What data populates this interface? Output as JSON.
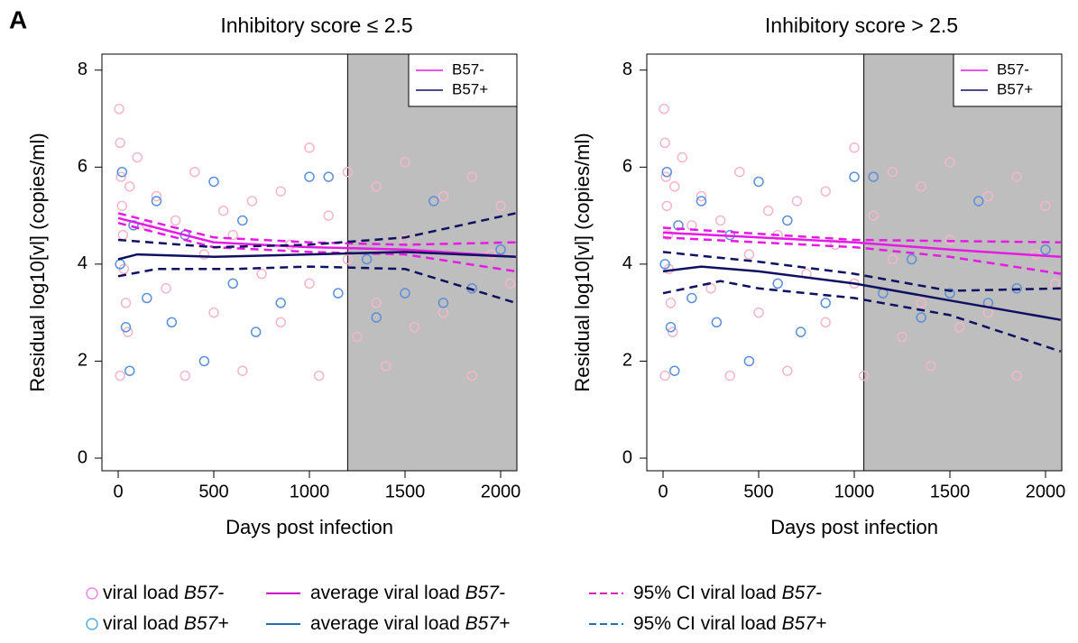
{
  "panel_label": "A",
  "chart_data": [
    {
      "type": "scatter",
      "title": "Inhibitory score ≤ 2.5",
      "x_label": "Days post infection",
      "y_label": "Residual log10[vl] (copies/ml)",
      "xlim": [
        -85,
        2085
      ],
      "ylim": [
        -0.26,
        8.33
      ],
      "xticks": [
        0,
        500,
        1000,
        1500,
        2000
      ],
      "yticks": [
        0,
        2,
        4,
        6,
        8
      ],
      "shade_from": 1200,
      "shade_color": "#bebebe",
      "legend_position": "top-right",
      "legend": [
        {
          "name": "B57-",
          "color": "#e619e6"
        },
        {
          "name": "B57+",
          "color": "#101060"
        }
      ],
      "series": [
        {
          "style": "points",
          "color": "#f4b6c8",
          "x": [
            5,
            10,
            15,
            20,
            25,
            30,
            40,
            50,
            10,
            60,
            100,
            150,
            200,
            250,
            300,
            350,
            400,
            450,
            500,
            550,
            600,
            650,
            700,
            750,
            850,
            850,
            900,
            1000,
            1000,
            1050,
            1100,
            1200,
            1200,
            1250,
            1350,
            1350,
            1400,
            1500,
            1500,
            1550,
            1700,
            1700,
            1850,
            1850,
            1950,
            2000,
            2050
          ],
          "values": [
            7.2,
            6.5,
            5.8,
            5.2,
            4.6,
            3.9,
            3.2,
            2.6,
            1.7,
            5.6,
            6.2,
            4.8,
            5.4,
            3.5,
            4.9,
            1.7,
            5.9,
            4.2,
            3.0,
            5.1,
            4.6,
            1.8,
            5.3,
            3.8,
            5.5,
            2.8,
            4.4,
            6.4,
            3.6,
            1.7,
            5.0,
            5.9,
            4.1,
            2.5,
            5.6,
            3.2,
            1.9,
            6.1,
            4.5,
            2.7,
            5.4,
            3.0,
            5.8,
            1.7,
            4.2,
            5.2,
            3.6
          ]
        },
        {
          "style": "points",
          "color": "#5b8fd9",
          "x": [
            10,
            20,
            40,
            60,
            80,
            150,
            200,
            280,
            350,
            450,
            500,
            600,
            650,
            720,
            850,
            1000,
            1100,
            1150,
            1300,
            1350,
            1500,
            1650,
            1700,
            1850,
            2000
          ],
          "values": [
            4.0,
            5.9,
            2.7,
            1.8,
            4.8,
            3.3,
            5.3,
            2.8,
            4.6,
            2.0,
            5.7,
            3.6,
            4.9,
            2.6,
            3.2,
            5.8,
            5.8,
            3.4,
            4.1,
            2.9,
            3.4,
            5.3,
            3.2,
            3.5,
            4.3
          ]
        },
        {
          "style": "line",
          "color": "#e619e6",
          "x": [
            0,
            500,
            1000,
            1500,
            2080
          ],
          "values": [
            4.95,
            4.45,
            4.35,
            4.3,
            4.15
          ]
        },
        {
          "style": "dashed",
          "color": "#e619e6",
          "x": [
            0,
            500,
            1000,
            1500,
            2080
          ],
          "values": [
            5.05,
            4.55,
            4.45,
            4.4,
            4.45
          ]
        },
        {
          "style": "dashed",
          "color": "#e619e6",
          "x": [
            0,
            500,
            1000,
            1500,
            2080
          ],
          "values": [
            4.85,
            4.35,
            4.25,
            4.2,
            3.85
          ]
        },
        {
          "style": "line",
          "color": "#101060",
          "x": [
            0,
            100,
            500,
            1000,
            1500,
            2080
          ],
          "values": [
            4.1,
            4.2,
            4.15,
            4.2,
            4.25,
            4.15
          ]
        },
        {
          "style": "dashed",
          "color": "#101060",
          "x": [
            0,
            500,
            1000,
            1500,
            2080
          ],
          "values": [
            4.5,
            4.35,
            4.4,
            4.55,
            5.05
          ]
        },
        {
          "style": "dashed",
          "color": "#101060",
          "x": [
            0,
            200,
            600,
            1000,
            1500,
            2080
          ],
          "values": [
            3.75,
            3.9,
            3.9,
            3.95,
            3.9,
            3.2
          ]
        }
      ]
    },
    {
      "type": "scatter",
      "title": "Inhibitory score > 2.5",
      "x_label": "Days post infection",
      "y_label": "Residual log10[vl] (copies/ml)",
      "xlim": [
        -85,
        2085
      ],
      "ylim": [
        -0.26,
        8.33
      ],
      "xticks": [
        0,
        500,
        1000,
        1500,
        2000
      ],
      "yticks": [
        0,
        2,
        4,
        6,
        8
      ],
      "shade_from": 1050,
      "shade_color": "#bebebe",
      "legend_position": "top-right",
      "legend": [
        {
          "name": "B57-",
          "color": "#e619e6"
        },
        {
          "name": "B57+",
          "color": "#101060"
        }
      ],
      "series": [
        {
          "style": "points",
          "color": "#f4b6c8",
          "x": [
            5,
            10,
            15,
            20,
            25,
            30,
            40,
            50,
            10,
            60,
            100,
            150,
            200,
            250,
            300,
            350,
            400,
            450,
            500,
            550,
            600,
            650,
            700,
            750,
            850,
            850,
            900,
            1000,
            1000,
            1050,
            1100,
            1200,
            1200,
            1250,
            1350,
            1350,
            1400,
            1500,
            1500,
            1550,
            1700,
            1700,
            1850,
            1850,
            1950,
            2000,
            2050
          ],
          "values": [
            7.2,
            6.5,
            5.8,
            5.2,
            4.6,
            3.9,
            3.2,
            2.6,
            1.7,
            5.6,
            6.2,
            4.8,
            5.4,
            3.5,
            4.9,
            1.7,
            5.9,
            4.2,
            3.0,
            5.1,
            4.6,
            1.8,
            5.3,
            3.8,
            5.5,
            2.8,
            4.4,
            6.4,
            3.6,
            1.7,
            5.0,
            5.9,
            4.1,
            2.5,
            5.6,
            3.2,
            1.9,
            6.1,
            4.5,
            2.7,
            5.4,
            3.0,
            5.8,
            1.7,
            4.2,
            5.2,
            3.6
          ]
        },
        {
          "style": "points",
          "color": "#5b8fd9",
          "x": [
            10,
            20,
            40,
            60,
            80,
            150,
            200,
            280,
            350,
            450,
            500,
            600,
            650,
            720,
            850,
            1000,
            1100,
            1150,
            1300,
            1350,
            1500,
            1650,
            1700,
            1850,
            2000
          ],
          "values": [
            4.0,
            5.9,
            2.7,
            1.8,
            4.8,
            3.3,
            5.3,
            2.8,
            4.6,
            2.0,
            5.7,
            3.6,
            4.9,
            2.6,
            3.2,
            5.8,
            5.8,
            3.4,
            4.1,
            2.9,
            3.4,
            5.3,
            3.2,
            3.5,
            4.3
          ]
        },
        {
          "style": "line",
          "color": "#e619e6",
          "x": [
            0,
            500,
            1000,
            1500,
            2080
          ],
          "values": [
            4.65,
            4.55,
            4.45,
            4.3,
            4.15
          ]
        },
        {
          "style": "dashed",
          "color": "#e619e6",
          "x": [
            0,
            1000,
            2080
          ],
          "values": [
            4.75,
            4.5,
            4.45
          ]
        },
        {
          "style": "dashed",
          "color": "#e619e6",
          "x": [
            0,
            1000,
            1500,
            2080
          ],
          "values": [
            4.55,
            4.35,
            4.15,
            3.8
          ]
        },
        {
          "style": "line",
          "color": "#101060",
          "x": [
            0,
            200,
            500,
            1000,
            1500,
            2080
          ],
          "values": [
            3.85,
            3.95,
            3.85,
            3.6,
            3.25,
            2.85
          ]
        },
        {
          "style": "dashed",
          "color": "#101060",
          "x": [
            0,
            500,
            1000,
            1500,
            2080
          ],
          "values": [
            4.25,
            4.05,
            3.8,
            3.45,
            3.5
          ]
        },
        {
          "style": "dashed",
          "color": "#101060",
          "x": [
            0,
            300,
            500,
            1000,
            1500,
            2080
          ],
          "values": [
            3.4,
            3.65,
            3.5,
            3.3,
            2.95,
            2.2
          ]
        }
      ]
    }
  ],
  "footer_legend": [
    {
      "marker": "circle",
      "color": "#ee88ee",
      "text": "viral load ",
      "italic": "B57-"
    },
    {
      "marker": "line",
      "color": "#cc00cc",
      "text": "average viral load ",
      "italic": "B57-"
    },
    {
      "marker": "dashed",
      "color": "#dd22bb",
      "text": "95% CI viral load ",
      "italic": "B57-"
    },
    {
      "marker": "circle",
      "color": "#55b0e8",
      "text": "viral load ",
      "italic": "B57+"
    },
    {
      "marker": "line",
      "color": "#1f6fb5",
      "text": "average viral load ",
      "italic": "B57+"
    },
    {
      "marker": "dashed",
      "color": "#2a6db0",
      "text": "95% CI viral load ",
      "italic": "B57+"
    }
  ]
}
